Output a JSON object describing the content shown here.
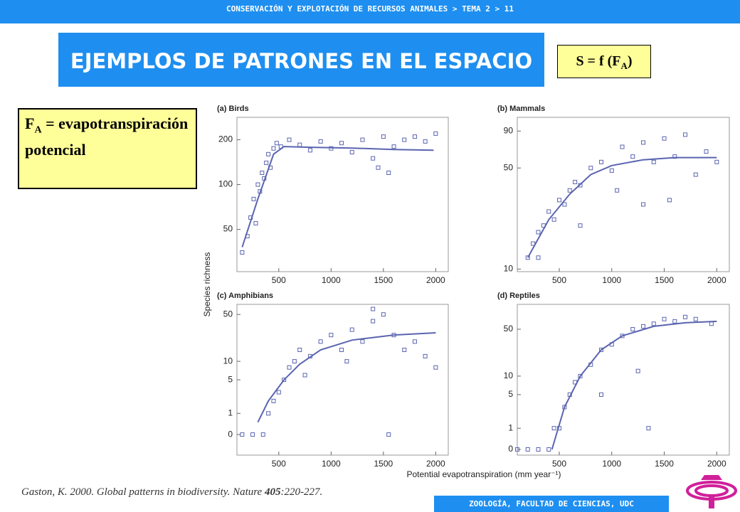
{
  "header": {
    "breadcrumb": "CONSERVACIÓN Y EXPLOTACIÓN DE RECURSOS ANIMALES > TEMA 2 > 11"
  },
  "title": "EJEMPLOS DE PATRONES EN EL ESPACIO",
  "formula": {
    "main": "S = f (F",
    "sub": "A",
    "end": ")"
  },
  "definition": {
    "symbol": "F",
    "sub": "A",
    "text": "= evapotranspiración potencial"
  },
  "citation": {
    "before": "Gaston, K. 2000. Global patterns in biodiversity. Nature ",
    "volume": "405",
    "after": ":220-227."
  },
  "footer": "ZOOLOGÍA, FACULTAD DE CIENCIAS, UDC",
  "figure": {
    "ylabel": "Species richness",
    "xlabel": "Potential evapotranspiration (mm year⁻¹)"
  },
  "chart_data": [
    {
      "type": "scatter",
      "title": "(a) Birds",
      "yscale": "log",
      "color": "#5a64b0",
      "xlim": [
        100,
        2120
      ],
      "xticks": [
        500,
        1000,
        1500,
        2000
      ],
      "ylim": [
        26,
        283
      ],
      "yticks": [
        50,
        100,
        200
      ],
      "series": [
        {
          "x": [
            150,
            200,
            230,
            260,
            280,
            300,
            320,
            340,
            360,
            380,
            400,
            420,
            450,
            480,
            520,
            600,
            700,
            800,
            900,
            1000,
            1100,
            1200,
            1300,
            1400,
            1500,
            1600,
            1700,
            1800,
            1900,
            2000,
            1450,
            1550
          ],
          "values": [
            35,
            45,
            60,
            80,
            55,
            100,
            90,
            120,
            110,
            140,
            160,
            130,
            175,
            190,
            180,
            200,
            185,
            170,
            195,
            175,
            190,
            165,
            200,
            150,
            210,
            180,
            200,
            210,
            195,
            220,
            130,
            120
          ]
        },
        {
          "x": [
            150,
            300,
            450,
            550,
            800,
            1200,
            1600,
            1980
          ],
          "values": [
            38,
            80,
            160,
            180,
            178,
            176,
            172,
            170
          ]
        }
      ]
    },
    {
      "type": "scatter",
      "title": "(b) Mammals",
      "yscale": "log",
      "color": "#5a64b0",
      "xlim": [
        100,
        2120
      ],
      "xticks": [
        500,
        1000,
        1500,
        2000
      ],
      "ylim": [
        9.6,
        112
      ],
      "yticks": [
        10,
        50,
        90
      ],
      "series": [
        {
          "x": [
            200,
            250,
            300,
            350,
            400,
            450,
            500,
            550,
            600,
            650,
            700,
            800,
            900,
            1000,
            1100,
            1200,
            1300,
            1400,
            1500,
            1600,
            1700,
            1800,
            1900,
            1050,
            1550,
            1300,
            2000,
            300,
            700
          ],
          "values": [
            12,
            15,
            18,
            20,
            25,
            22,
            30,
            28,
            35,
            40,
            38,
            50,
            55,
            48,
            70,
            60,
            75,
            55,
            80,
            60,
            85,
            45,
            65,
            35,
            30,
            28,
            55,
            12,
            20
          ]
        },
        {
          "x": [
            200,
            400,
            600,
            800,
            1000,
            1300,
            1600,
            2000
          ],
          "values": [
            12,
            22,
            33,
            45,
            52,
            57,
            59,
            59
          ]
        }
      ]
    },
    {
      "type": "scatter",
      "title": "(c) Amphibians",
      "yscale": "log1p",
      "color": "#5a64b0",
      "xlim": [
        100,
        2120
      ],
      "xticks": [
        500,
        1000,
        1500,
        2000
      ],
      "ylim": [
        -0.49,
        70
      ],
      "yticks": [
        0,
        1,
        5,
        10,
        50
      ],
      "series": [
        {
          "x": [
            150,
            250,
            350,
            400,
            450,
            500,
            550,
            600,
            650,
            700,
            800,
            900,
            1000,
            1100,
            1200,
            1300,
            1400,
            1500,
            1600,
            1700,
            1800,
            1900,
            2000,
            1150,
            1550,
            1400,
            750
          ],
          "values": [
            0,
            0,
            0,
            1,
            2,
            3,
            5,
            8,
            10,
            15,
            12,
            20,
            25,
            15,
            30,
            20,
            40,
            50,
            25,
            15,
            20,
            12,
            8,
            10,
            0,
            60,
            6
          ]
        },
        {
          "x": [
            300,
            400,
            550,
            700,
            900,
            1200,
            1600,
            2000
          ],
          "values": [
            0.5,
            2,
            5,
            9,
            15,
            21,
            25,
            27
          ]
        }
      ]
    },
    {
      "type": "scatter",
      "title": "(d) Reptiles",
      "yscale": "log1p",
      "color": "#5a64b0",
      "xlim": [
        100,
        2120
      ],
      "xticks": [
        500,
        1000,
        1500,
        2000
      ],
      "ylim": [
        -0.17,
        114
      ],
      "yticks": [
        0,
        1,
        5,
        10,
        50
      ],
      "series": [
        {
          "x": [
            100,
            200,
            300,
            400,
            450,
            500,
            550,
            600,
            650,
            700,
            800,
            900,
            1000,
            1100,
            1200,
            1300,
            1400,
            1500,
            1600,
            1700,
            1800,
            1950,
            1250,
            1350,
            900
          ],
          "values": [
            0,
            0,
            0,
            0,
            1,
            1,
            3,
            5,
            8,
            10,
            15,
            25,
            30,
            40,
            50,
            55,
            60,
            70,
            65,
            75,
            70,
            60,
            12,
            1,
            5
          ]
        },
        {
          "x": [
            430,
            550,
            700,
            900,
            1100,
            1400,
            1700,
            2000
          ],
          "values": [
            0,
            3,
            10,
            25,
            40,
            55,
            62,
            65
          ]
        }
      ]
    }
  ]
}
